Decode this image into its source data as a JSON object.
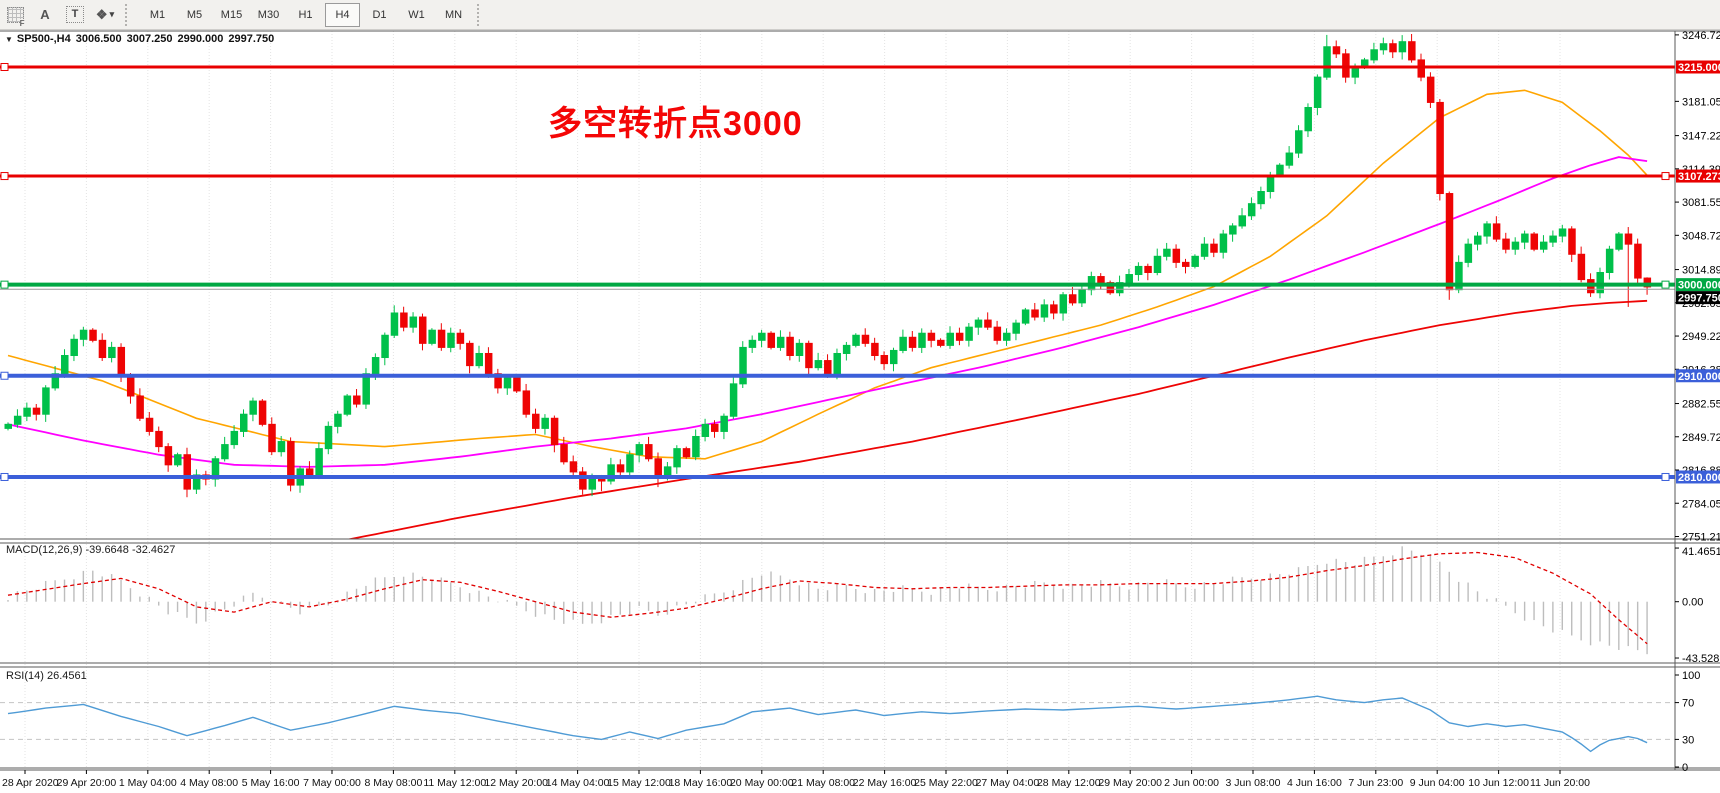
{
  "toolbar": {
    "icons": [
      {
        "name": "grid-toggle-icon",
        "glyph": "F"
      },
      {
        "name": "text-label-icon",
        "glyph": "A"
      },
      {
        "name": "text-box-icon",
        "glyph": "T"
      },
      {
        "name": "arrows-tool-icon",
        "glyph": "❖"
      }
    ],
    "timeframes": [
      "M1",
      "M5",
      "M15",
      "M30",
      "H1",
      "H4",
      "D1",
      "W1",
      "MN"
    ],
    "active_timeframe": "H4"
  },
  "header": {
    "symbol": "SP500-,H4",
    "open": "3006.500",
    "high": "3007.250",
    "low": "2990.000",
    "close": "2997.750"
  },
  "annotation": {
    "text": "多空转折点3000",
    "color": "#f40606"
  },
  "macd_panel": {
    "label": "MACD(12,26,9)",
    "values": "-39.6648 -32.4627",
    "axis_ticks": [
      "41.4651",
      "0.00",
      "-43.5281"
    ]
  },
  "rsi_panel": {
    "label": "RSI(14)",
    "value": "26.4561",
    "axis_ticks": [
      "100",
      "70",
      "30",
      "0"
    ],
    "level_lines": [
      70,
      30
    ]
  },
  "price_axis": {
    "ticks": [
      {
        "text": "3246.725",
        "price": 3246.725
      },
      {
        "text": "3181.055",
        "price": 3181.055
      },
      {
        "text": "3147.225",
        "price": 3147.225
      },
      {
        "text": "3114.390",
        "price": 3114.39
      },
      {
        "text": "3081.555",
        "price": 3081.555
      },
      {
        "text": "3048.720",
        "price": 3048.72
      },
      {
        "text": "3014.890",
        "price": 3014.89
      },
      {
        "text": "2982.055",
        "price": 2982.055
      },
      {
        "text": "2949.220",
        "price": 2949.22
      },
      {
        "text": "2916.385",
        "price": 2916.385
      },
      {
        "text": "2882.555",
        "price": 2882.555
      },
      {
        "text": "2849.720",
        "price": 2849.72
      },
      {
        "text": "2816.885",
        "price": 2816.885
      },
      {
        "text": "2784.050",
        "price": 2784.05
      },
      {
        "text": "2751.215",
        "price": 2751.215
      }
    ],
    "line_labels": [
      {
        "text": "3215.000",
        "price": 3215,
        "bg": "#e80000"
      },
      {
        "text": "3107.273",
        "price": 3107.273,
        "bg": "#e80000"
      },
      {
        "text": "3000.000",
        "price": 3000,
        "bg": "#00A843"
      },
      {
        "text": "2997.750",
        "price": 3000,
        "bg": "#000000",
        "stack_below": true
      },
      {
        "text": "2910.000",
        "price": 2910,
        "bg": "#3b5fd9"
      },
      {
        "text": "2810.000",
        "price": 2810,
        "bg": "#3b5fd9"
      }
    ]
  },
  "time_axis": {
    "labels": [
      "28 Apr 2020",
      "29 Apr 20:00",
      "1 May 04:00",
      "4 May 08:00",
      "5 May 16:00",
      "7 May 00:00",
      "8 May 08:00",
      "11 May 12:00",
      "12 May 20:00",
      "14 May 04:00",
      "15 May 12:00",
      "18 May 16:00",
      "20 May 00:00",
      "21 May 08:00",
      "22 May 16:00",
      "25 May 22:00",
      "27 May 04:00",
      "28 May 12:00",
      "29 May 20:00",
      "2 Jun 00:00",
      "3 Jun 08:00",
      "4 Jun 16:00",
      "7 Jun 23:00",
      "9 Jun 04:00",
      "10 Jun 12:00",
      "11 Jun 20:00"
    ]
  },
  "chart_data": {
    "type": "candlestick",
    "symbol": "SP500-",
    "timeframe": "H4",
    "price_range_visible": [
      2751.215,
      3246.725
    ],
    "colors": {
      "up_candle": "#00C04A",
      "down_candle": "#EE0404",
      "ma_fast": "#FFA500",
      "ma_mid": "#FF00FF",
      "ma_slow": "#EE0404",
      "macd_histogram": "#BDBDBD",
      "macd_signal": "#e00000",
      "rsi_line": "#4f9bd5",
      "hline_red": "#e80000",
      "hline_green": "#00A843",
      "hline_blue": "#3b5fd9",
      "hline_gray": "#9a9a9a"
    },
    "first_open": 2858,
    "closes": [
      2862,
      2870,
      2878,
      2872,
      2898,
      2912,
      2930,
      2946,
      2955,
      2945,
      2928,
      2938,
      2910,
      2890,
      2868,
      2855,
      2840,
      2822,
      2832,
      2798,
      2812,
      2808,
      2828,
      2842,
      2855,
      2872,
      2885,
      2862,
      2835,
      2845,
      2802,
      2818,
      2812,
      2838,
      2860,
      2872,
      2890,
      2882,
      2912,
      2928,
      2950,
      2972,
      2958,
      2968,
      2942,
      2955,
      2938,
      2952,
      2942,
      2920,
      2932,
      2912,
      2898,
      2908,
      2895,
      2872,
      2858,
      2868,
      2842,
      2825,
      2815,
      2798,
      2810,
      2806,
      2822,
      2815,
      2832,
      2842,
      2828,
      2812,
      2820,
      2838,
      2830,
      2850,
      2862,
      2855,
      2870,
      2902,
      2938,
      2945,
      2952,
      2938,
      2948,
      2930,
      2942,
      2918,
      2925,
      2912,
      2932,
      2940,
      2950,
      2942,
      2930,
      2922,
      2935,
      2948,
      2938,
      2952,
      2945,
      2940,
      2952,
      2945,
      2958,
      2965,
      2958,
      2945,
      2952,
      2962,
      2975,
      2968,
      2980,
      2972,
      2990,
      2982,
      2995,
      3008,
      3002,
      2992,
      3002,
      3010,
      3018,
      3012,
      3028,
      3035,
      3022,
      3018,
      3028,
      3040,
      3032,
      3050,
      3058,
      3068,
      3080,
      3092,
      3108,
      3118,
      3130,
      3152,
      3175,
      3205,
      3235,
      3228,
      3205,
      3215,
      3222,
      3232,
      3238,
      3230,
      3240,
      3222,
      3205,
      3180,
      3090,
      2995,
      3022,
      3040,
      3048,
      3060,
      3045,
      3035,
      3042,
      3050,
      3035,
      3042,
      3048,
      3055,
      3030,
      3005,
      2992,
      3012,
      3035,
      3050,
      3040,
      3006.5,
      2997.75
    ],
    "wick_overrides": {
      "19": {
        "low": 2790
      },
      "63": {
        "low": 2796
      },
      "69": {
        "low": 2800
      },
      "140": {
        "high": 3246.7
      },
      "146": {
        "high": 3244
      },
      "148": {
        "high": 3246.5
      },
      "153": {
        "low": 2985
      },
      "172": {
        "low": 2978
      },
      "174": {
        "open": 3006.5,
        "high": 3007.25,
        "low": 2990
      }
    },
    "hlines": [
      {
        "price": 3215,
        "color": "#e80000",
        "width": 3,
        "left_marker": true,
        "right_marker": false
      },
      {
        "price": 3107.273,
        "color": "#e80000",
        "width": 3,
        "left_marker": true,
        "right_marker": true
      },
      {
        "price": 3000,
        "color": "#00A843",
        "width": 4,
        "left_marker": true,
        "right_marker": true
      },
      {
        "price": 2995.5,
        "color": "#9a9a9a",
        "width": 1,
        "left_marker": false,
        "right_marker": false
      },
      {
        "price": 2910,
        "color": "#3b5fd9",
        "width": 4,
        "left_marker": true,
        "right_marker": false
      },
      {
        "price": 2810,
        "color": "#3b5fd9",
        "width": 4,
        "left_marker": true,
        "right_marker": true
      }
    ],
    "ma_orange_anchors": [
      [
        0,
        2930
      ],
      [
        10,
        2905
      ],
      [
        20,
        2868
      ],
      [
        30,
        2845
      ],
      [
        40,
        2840
      ],
      [
        50,
        2848
      ],
      [
        56,
        2852
      ],
      [
        62,
        2840
      ],
      [
        68,
        2830
      ],
      [
        74,
        2828
      ],
      [
        80,
        2845
      ],
      [
        86,
        2872
      ],
      [
        92,
        2898
      ],
      [
        98,
        2918
      ],
      [
        104,
        2932
      ],
      [
        110,
        2946
      ],
      [
        116,
        2960
      ],
      [
        122,
        2978
      ],
      [
        128,
        2998
      ],
      [
        134,
        3028
      ],
      [
        140,
        3068
      ],
      [
        146,
        3120
      ],
      [
        152,
        3165
      ],
      [
        157,
        3188
      ],
      [
        161,
        3192
      ],
      [
        165,
        3180
      ],
      [
        169,
        3152
      ],
      [
        172,
        3128
      ],
      [
        174,
        3108
      ]
    ],
    "ma_magenta_anchors": [
      [
        0,
        2862
      ],
      [
        8,
        2846
      ],
      [
        16,
        2832
      ],
      [
        24,
        2822
      ],
      [
        32,
        2820
      ],
      [
        40,
        2822
      ],
      [
        48,
        2830
      ],
      [
        56,
        2840
      ],
      [
        64,
        2848
      ],
      [
        72,
        2858
      ],
      [
        80,
        2872
      ],
      [
        88,
        2888
      ],
      [
        96,
        2904
      ],
      [
        104,
        2920
      ],
      [
        112,
        2938
      ],
      [
        120,
        2958
      ],
      [
        128,
        2980
      ],
      [
        136,
        3005
      ],
      [
        144,
        3032
      ],
      [
        152,
        3060
      ],
      [
        158,
        3082
      ],
      [
        164,
        3105
      ],
      [
        168,
        3118
      ],
      [
        171,
        3126
      ],
      [
        174,
        3122
      ]
    ],
    "ma_red_anchors": [
      [
        36,
        2748
      ],
      [
        48,
        2770
      ],
      [
        60,
        2790
      ],
      [
        72,
        2808
      ],
      [
        84,
        2825
      ],
      [
        96,
        2845
      ],
      [
        108,
        2868
      ],
      [
        120,
        2892
      ],
      [
        128,
        2910
      ],
      [
        136,
        2928
      ],
      [
        144,
        2945
      ],
      [
        152,
        2960
      ],
      [
        160,
        2972
      ],
      [
        166,
        2979
      ],
      [
        170,
        2982
      ],
      [
        174,
        2984
      ]
    ],
    "macd_histogram_anchors": [
      [
        0,
        4
      ],
      [
        6,
        18
      ],
      [
        9,
        24
      ],
      [
        12,
        16
      ],
      [
        15,
        2
      ],
      [
        17,
        -8
      ],
      [
        20,
        -16
      ],
      [
        23,
        -6
      ],
      [
        26,
        6
      ],
      [
        28,
        2
      ],
      [
        31,
        -8
      ],
      [
        34,
        -2
      ],
      [
        38,
        14
      ],
      [
        42,
        22
      ],
      [
        45,
        18
      ],
      [
        48,
        12
      ],
      [
        51,
        4
      ],
      [
        54,
        -4
      ],
      [
        58,
        -14
      ],
      [
        61,
        -18
      ],
      [
        64,
        -12
      ],
      [
        67,
        -6
      ],
      [
        69,
        -10
      ],
      [
        72,
        -2
      ],
      [
        76,
        8
      ],
      [
        80,
        22
      ],
      [
        83,
        18
      ],
      [
        86,
        10
      ],
      [
        89,
        12
      ],
      [
        92,
        8
      ],
      [
        95,
        10
      ],
      [
        98,
        8
      ],
      [
        101,
        12
      ],
      [
        104,
        10
      ],
      [
        107,
        12
      ],
      [
        110,
        14
      ],
      [
        113,
        12
      ],
      [
        116,
        14
      ],
      [
        119,
        12
      ],
      [
        122,
        16
      ],
      [
        125,
        12
      ],
      [
        128,
        14
      ],
      [
        131,
        18
      ],
      [
        134,
        20
      ],
      [
        137,
        24
      ],
      [
        140,
        32
      ],
      [
        143,
        30
      ],
      [
        146,
        36
      ],
      [
        148,
        41
      ],
      [
        150,
        38
      ],
      [
        152,
        30
      ],
      [
        154,
        18
      ],
      [
        156,
        8
      ],
      [
        158,
        0
      ],
      [
        160,
        -8
      ],
      [
        162,
        -16
      ],
      [
        164,
        -22
      ],
      [
        166,
        -27
      ],
      [
        168,
        -31
      ],
      [
        170,
        -34
      ],
      [
        172,
        -37
      ],
      [
        174,
        -39.66
      ]
    ],
    "macd_signal_anchors": [
      [
        0,
        5
      ],
      [
        8,
        14
      ],
      [
        12,
        18
      ],
      [
        16,
        10
      ],
      [
        20,
        -4
      ],
      [
        24,
        -8
      ],
      [
        28,
        0
      ],
      [
        32,
        -4
      ],
      [
        36,
        2
      ],
      [
        40,
        10
      ],
      [
        44,
        17
      ],
      [
        48,
        15
      ],
      [
        52,
        8
      ],
      [
        56,
        0
      ],
      [
        60,
        -8
      ],
      [
        64,
        -12
      ],
      [
        68,
        -9
      ],
      [
        72,
        -5
      ],
      [
        76,
        2
      ],
      [
        80,
        10
      ],
      [
        84,
        16
      ],
      [
        88,
        14
      ],
      [
        92,
        11
      ],
      [
        96,
        10
      ],
      [
        100,
        11
      ],
      [
        104,
        11
      ],
      [
        108,
        12
      ],
      [
        112,
        13
      ],
      [
        116,
        13
      ],
      [
        120,
        14
      ],
      [
        124,
        14
      ],
      [
        128,
        14
      ],
      [
        132,
        16
      ],
      [
        136,
        19
      ],
      [
        140,
        24
      ],
      [
        144,
        28
      ],
      [
        148,
        33
      ],
      [
        152,
        37
      ],
      [
        156,
        38
      ],
      [
        160,
        34
      ],
      [
        164,
        22
      ],
      [
        168,
        6
      ],
      [
        171,
        -14
      ],
      [
        174,
        -32.46
      ]
    ],
    "macd_axis_range": [
      -43.5281,
      41.4651
    ],
    "rsi_anchors": [
      [
        0,
        58
      ],
      [
        4,
        64
      ],
      [
        8,
        68
      ],
      [
        12,
        55
      ],
      [
        16,
        44
      ],
      [
        19,
        34
      ],
      [
        23,
        45
      ],
      [
        26,
        54
      ],
      [
        30,
        40
      ],
      [
        34,
        48
      ],
      [
        38,
        58
      ],
      [
        41,
        66
      ],
      [
        44,
        62
      ],
      [
        48,
        58
      ],
      [
        52,
        50
      ],
      [
        56,
        42
      ],
      [
        60,
        34
      ],
      [
        63,
        30
      ],
      [
        66,
        38
      ],
      [
        69,
        31
      ],
      [
        72,
        40
      ],
      [
        76,
        47
      ],
      [
        79,
        60
      ],
      [
        83,
        64
      ],
      [
        86,
        57
      ],
      [
        90,
        62
      ],
      [
        93,
        56
      ],
      [
        97,
        60
      ],
      [
        100,
        58
      ],
      [
        104,
        61
      ],
      [
        108,
        63
      ],
      [
        112,
        62
      ],
      [
        116,
        64
      ],
      [
        120,
        66
      ],
      [
        124,
        63
      ],
      [
        128,
        66
      ],
      [
        132,
        69
      ],
      [
        136,
        73
      ],
      [
        139,
        77
      ],
      [
        141,
        73
      ],
      [
        144,
        70
      ],
      [
        146,
        73
      ],
      [
        148,
        75
      ],
      [
        151,
        62
      ],
      [
        153,
        48
      ],
      [
        155,
        44
      ],
      [
        157,
        47
      ],
      [
        159,
        44
      ],
      [
        161,
        46
      ],
      [
        163,
        42
      ],
      [
        165,
        38
      ],
      [
        166,
        32
      ],
      [
        167,
        25
      ],
      [
        168,
        17
      ],
      [
        169,
        24
      ],
      [
        170,
        29
      ],
      [
        171,
        31
      ],
      [
        172,
        33
      ],
      [
        173,
        31
      ],
      [
        174,
        26.46
      ]
    ],
    "rsi_axis_range": [
      0,
      100
    ]
  }
}
